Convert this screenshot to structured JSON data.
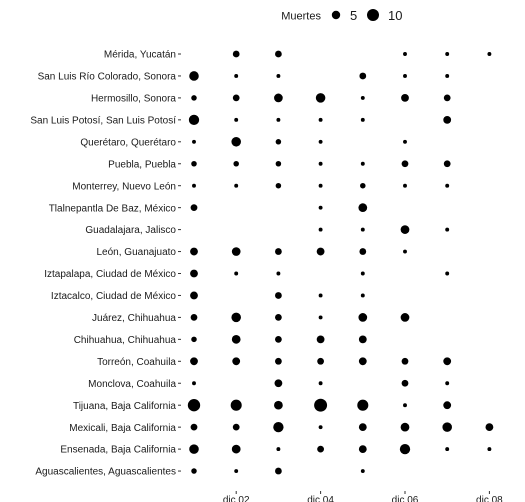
{
  "chart_data": {
    "type": "scatter",
    "title": "",
    "xlabel": "",
    "ylabel": "",
    "grid": false,
    "legend": {
      "title": "Muertes",
      "placement": "top",
      "entries": [
        {
          "label": "5",
          "value": 5
        },
        {
          "label": "10",
          "value": 10
        }
      ]
    },
    "x_ticks": [
      "dic 02",
      "dic 04",
      "dic 06",
      "dic 08"
    ],
    "x_tick_years": [
      2002,
      2004,
      2006,
      2008
    ],
    "x_columns": [
      2001,
      2002,
      2003,
      2004,
      2005,
      2006,
      2007,
      2008
    ],
    "categories": [
      "Mérida, Yucatán",
      "San Luis Río Colorado, Sonora",
      "Hermosillo, Sonora",
      "San Luis Potosí, San Luis Potosí",
      "Querétaro, Querétaro",
      "Puebla, Puebla",
      "Monterrey, Nuevo León",
      "Tlalnepantla De Baz, México",
      "Guadalajara, Jalisco",
      "León, Guanajuato",
      "Iztapalapa, Ciudad de México",
      "Iztacalco, Ciudad de México",
      "Juárez, Chihuahua",
      "Chihuahua, Chihuahua",
      "Torreón, Coahuila",
      "Monclova, Coahuila",
      "Tijuana, Baja California",
      "Mexicali, Baja California",
      "Ensenada, Baja California",
      "Aguascalientes, Aguascalientes"
    ],
    "series": [
      {
        "values": [
          null,
          3,
          3,
          null,
          null,
          1,
          1,
          1
        ]
      },
      {
        "values": [
          6,
          1,
          1,
          null,
          3,
          1,
          1,
          null
        ]
      },
      {
        "values": [
          2,
          3,
          5,
          6,
          1,
          4,
          3,
          null
        ]
      },
      {
        "values": [
          7,
          1,
          1,
          1,
          1,
          null,
          4,
          null
        ]
      },
      {
        "values": [
          1,
          6,
          2,
          1,
          null,
          1,
          null,
          null
        ]
      },
      {
        "values": [
          2,
          2,
          2,
          1,
          1,
          3,
          3,
          null
        ]
      },
      {
        "values": [
          1,
          1,
          2,
          1,
          2,
          1,
          1,
          null
        ]
      },
      {
        "values": [
          3,
          null,
          null,
          1,
          5,
          null,
          null,
          null
        ]
      },
      {
        "values": [
          null,
          null,
          null,
          1,
          1,
          5,
          1,
          null
        ]
      },
      {
        "values": [
          4,
          5,
          3,
          4,
          3,
          1,
          null,
          null
        ]
      },
      {
        "values": [
          4,
          1,
          1,
          null,
          1,
          null,
          1,
          null
        ]
      },
      {
        "values": [
          4,
          null,
          3,
          1,
          1,
          null,
          null,
          null
        ]
      },
      {
        "values": [
          3,
          6,
          3,
          1,
          5,
          5,
          null,
          null
        ]
      },
      {
        "values": [
          2,
          5,
          3,
          4,
          4,
          null,
          null,
          null
        ]
      },
      {
        "values": [
          4,
          4,
          3,
          3,
          4,
          3,
          4,
          null
        ]
      },
      {
        "values": [
          1,
          null,
          4,
          1,
          null,
          3,
          1,
          null
        ]
      },
      {
        "values": [
          10,
          8,
          5,
          11,
          8,
          1,
          4,
          null
        ]
      },
      {
        "values": [
          3,
          3,
          7,
          1,
          4,
          5,
          6,
          4
        ]
      },
      {
        "values": [
          6,
          5,
          1,
          3,
          4,
          7,
          1,
          1
        ]
      },
      {
        "values": [
          2,
          1,
          3,
          null,
          1,
          null,
          null,
          null
        ]
      }
    ]
  }
}
